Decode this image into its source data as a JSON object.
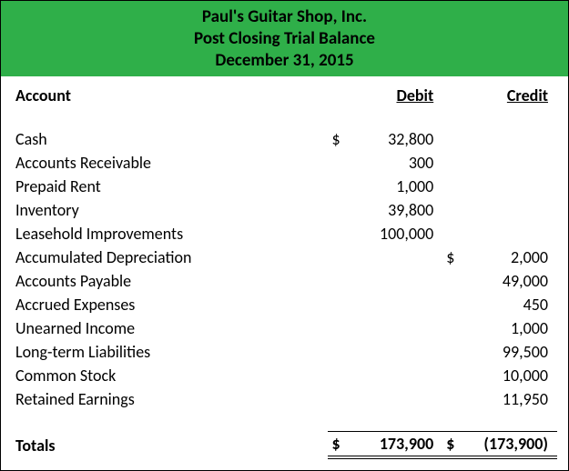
{
  "header": {
    "company": "Paul's Guitar Shop, Inc.",
    "report": "Post Closing Trial Balance",
    "date": "December 31, 2015",
    "background_color": "#2FAF49",
    "text_color": "#000000",
    "font_weight": "bold",
    "font_size_pt": 14
  },
  "columns": {
    "account": "Account",
    "debit": "Debit",
    "credit": "Credit"
  },
  "currency_symbol": "$",
  "rows": [
    {
      "account": "Cash",
      "debit": "32,800",
      "credit": "",
      "show_debit_sym": true,
      "show_credit_sym": false
    },
    {
      "account": "Accounts Receivable",
      "debit": "300",
      "credit": "",
      "show_debit_sym": false,
      "show_credit_sym": false
    },
    {
      "account": "Prepaid Rent",
      "debit": "1,000",
      "credit": "",
      "show_debit_sym": false,
      "show_credit_sym": false
    },
    {
      "account": "Inventory",
      "debit": "39,800",
      "credit": "",
      "show_debit_sym": false,
      "show_credit_sym": false
    },
    {
      "account": "Leasehold Improvements",
      "debit": "100,000",
      "credit": "",
      "show_debit_sym": false,
      "show_credit_sym": false
    },
    {
      "account": "Accumulated Depreciation",
      "debit": "",
      "credit": "2,000",
      "show_debit_sym": false,
      "show_credit_sym": true
    },
    {
      "account": "Accounts Payable",
      "debit": "",
      "credit": "49,000",
      "show_debit_sym": false,
      "show_credit_sym": false
    },
    {
      "account": "Accrued Expenses",
      "debit": "",
      "credit": "450",
      "show_debit_sym": false,
      "show_credit_sym": false
    },
    {
      "account": "Unearned Income",
      "debit": "",
      "credit": "1,000",
      "show_debit_sym": false,
      "show_credit_sym": false
    },
    {
      "account": "Long-term Liabilities",
      "debit": "",
      "credit": "99,500",
      "show_debit_sym": false,
      "show_credit_sym": false
    },
    {
      "account": "Common Stock",
      "debit": "",
      "credit": "10,000",
      "show_debit_sym": false,
      "show_credit_sym": false
    },
    {
      "account": "Retained Earnings",
      "debit": "",
      "credit": "11,950",
      "show_debit_sym": false,
      "show_credit_sym": false
    }
  ],
  "totals": {
    "label": "Totals",
    "debit": "173,900",
    "credit": "(173,900)"
  },
  "styling": {
    "body_font": "Calibri",
    "body_font_size_pt": 13,
    "border_color": "#000000",
    "total_rule": "single-top double-bottom"
  }
}
